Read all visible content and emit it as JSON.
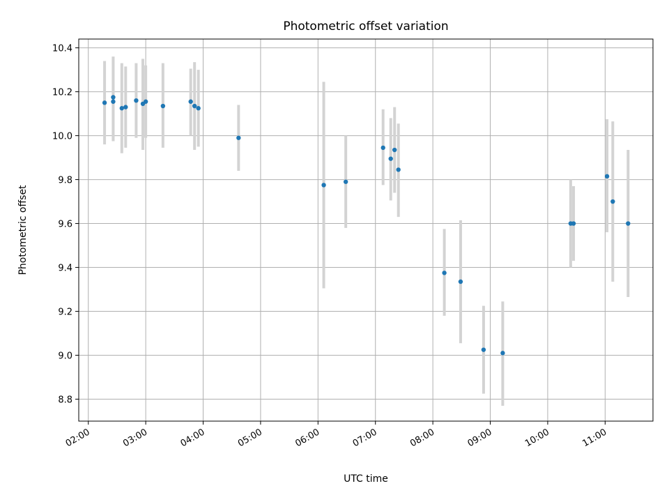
{
  "chart_data": {
    "type": "scatter",
    "title": "Photometric offset variation",
    "xlabel": "UTC time",
    "ylabel": "Photometric offset",
    "x_unit": "UTC hours",
    "xlim": [
      "01:50",
      "11:50"
    ],
    "ylim": [
      8.7,
      10.44
    ],
    "x_ticks": [
      "02:00",
      "03:00",
      "04:00",
      "05:00",
      "06:00",
      "07:00",
      "08:00",
      "09:00",
      "10:00",
      "11:00"
    ],
    "y_ticks": [
      8.8,
      9.0,
      9.2,
      9.4,
      9.6,
      9.8,
      10.0,
      10.2,
      10.4
    ],
    "grid": true,
    "legend": "none",
    "marker_color": "#1f77b4",
    "errorbar_color": "#d3d3d3",
    "points": [
      {
        "x": "02:17",
        "y": 10.15,
        "ylow": 9.96,
        "yhigh": 10.34
      },
      {
        "x": "02:26",
        "y": 10.175,
        "ylow": 9.975,
        "yhigh": 10.36
      },
      {
        "x": "02:26",
        "y": 10.155,
        "ylow": 9.975,
        "yhigh": 10.36
      },
      {
        "x": "02:35",
        "y": 10.125,
        "ylow": 9.92,
        "yhigh": 10.33
      },
      {
        "x": "02:39",
        "y": 10.13,
        "ylow": 9.945,
        "yhigh": 10.315
      },
      {
        "x": "02:50",
        "y": 10.16,
        "ylow": 9.99,
        "yhigh": 10.33
      },
      {
        "x": "02:57",
        "y": 10.145,
        "ylow": 9.935,
        "yhigh": 10.35
      },
      {
        "x": "03:00",
        "y": 10.155,
        "ylow": 9.99,
        "yhigh": 10.32
      },
      {
        "x": "03:18",
        "y": 10.135,
        "ylow": 9.945,
        "yhigh": 10.33
      },
      {
        "x": "03:47",
        "y": 10.155,
        "ylow": 10.0,
        "yhigh": 10.305
      },
      {
        "x": "03:51",
        "y": 10.135,
        "ylow": 9.935,
        "yhigh": 10.335
      },
      {
        "x": "03:55",
        "y": 10.125,
        "ylow": 9.95,
        "yhigh": 10.3
      },
      {
        "x": "04:37",
        "y": 9.99,
        "ylow": 9.84,
        "yhigh": 10.14
      },
      {
        "x": "06:06",
        "y": 9.775,
        "ylow": 9.305,
        "yhigh": 10.245
      },
      {
        "x": "06:29",
        "y": 9.79,
        "ylow": 9.58,
        "yhigh": 10.0
      },
      {
        "x": "07:08",
        "y": 9.945,
        "ylow": 9.775,
        "yhigh": 10.12
      },
      {
        "x": "07:16",
        "y": 9.895,
        "ylow": 9.705,
        "yhigh": 10.08
      },
      {
        "x": "07:20",
        "y": 9.935,
        "ylow": 9.74,
        "yhigh": 10.13
      },
      {
        "x": "07:24",
        "y": 9.845,
        "ylow": 9.63,
        "yhigh": 10.055
      },
      {
        "x": "08:12",
        "y": 9.375,
        "ylow": 9.18,
        "yhigh": 9.575
      },
      {
        "x": "08:29",
        "y": 9.335,
        "ylow": 9.055,
        "yhigh": 9.615
      },
      {
        "x": "08:53",
        "y": 9.025,
        "ylow": 8.825,
        "yhigh": 9.225
      },
      {
        "x": "09:13",
        "y": 9.01,
        "ylow": 8.77,
        "yhigh": 9.245
      },
      {
        "x": "10:24",
        "y": 9.6,
        "ylow": 9.4,
        "yhigh": 9.8
      },
      {
        "x": "10:27",
        "y": 9.6,
        "ylow": 9.43,
        "yhigh": 9.77
      },
      {
        "x": "11:02",
        "y": 9.815,
        "ylow": 9.56,
        "yhigh": 10.075
      },
      {
        "x": "11:08",
        "y": 9.7,
        "ylow": 9.335,
        "yhigh": 10.065
      },
      {
        "x": "11:24",
        "y": 9.6,
        "ylow": 9.265,
        "yhigh": 9.935
      }
    ]
  }
}
